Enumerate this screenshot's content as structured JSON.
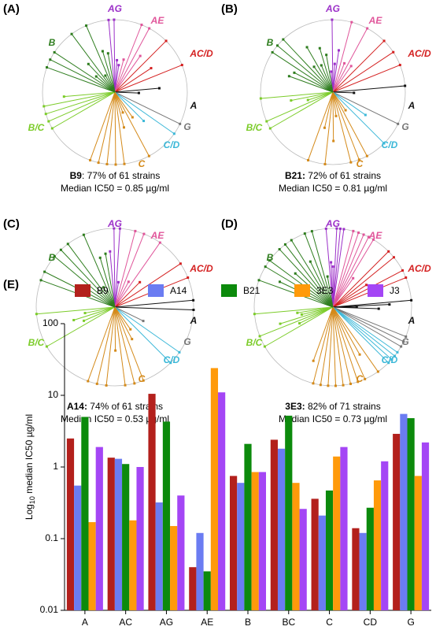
{
  "panels": [
    {
      "label": "(A)",
      "antibody": "B9",
      "caption": ": 77% of 61 strains",
      "median": "Median IC50 = 0.85 µg/ml",
      "clades": [
        "AG",
        "AE",
        "AC/D",
        "A",
        "G",
        "C/D",
        "C",
        "B/C",
        "B"
      ]
    },
    {
      "label": "(B)",
      "antibody": "B21:",
      "caption": " 72% of 61 strains",
      "median": "Median IC50 = 0.81 µg/ml",
      "clades": [
        "AG",
        "AE",
        "AC/D",
        "A",
        "G",
        "C/D",
        "C",
        "B/C",
        "B"
      ]
    },
    {
      "label": "(C)",
      "antibody": "A14:",
      "caption": " 74% of 61 strains",
      "median": "Median IC50 = 0.53 µg/ml",
      "clades": [
        "AG",
        "AE",
        "AC/D",
        "A",
        "G",
        "C/D",
        "C",
        "B/C",
        "B"
      ]
    },
    {
      "label": "(D)",
      "antibody": "3E3:",
      "caption": " 82% of 71 strains",
      "median": "Median IC50 = 0.73 µg/ml",
      "clades": [
        "AG",
        "AE",
        "AC/D",
        "A",
        "G",
        "C/D",
        "C",
        "B/C",
        "B"
      ]
    }
  ],
  "chart_data": {
    "type": "bar",
    "panel_label": "(E)",
    "y_label": {
      "base": "Log",
      "subscript": "10",
      "rest": " median IC50 µg/ml"
    },
    "categories": [
      "A",
      "AC",
      "AG",
      "AE",
      "B",
      "BC",
      "C",
      "CD",
      "G"
    ],
    "series": [
      {
        "name": "B9",
        "color": "#b3201c",
        "values": [
          2.5,
          1.35,
          10.5,
          0.04,
          0.75,
          2.4,
          0.36,
          0.14,
          2.9
        ]
      },
      {
        "name": "A14",
        "color": "#6b7cf2",
        "values": [
          0.55,
          1.3,
          0.32,
          0.12,
          0.6,
          1.8,
          0.21,
          0.12,
          5.5
        ]
      },
      {
        "name": "B21",
        "color": "#0c8a0c",
        "values": [
          5,
          1.1,
          4.3,
          0.035,
          2.1,
          5.2,
          0.47,
          0.27,
          4.8
        ]
      },
      {
        "name": "3E3",
        "color": "#ff9a0a",
        "values": [
          0.17,
          0.18,
          0.15,
          24,
          0.85,
          0.6,
          1.4,
          0.65,
          0.75
        ]
      },
      {
        "name": "J3",
        "color": "#a446f5",
        "values": [
          1.9,
          1.0,
          0.4,
          11,
          0.85,
          0.26,
          1.9,
          1.2,
          2.2
        ]
      }
    ],
    "log_scale": true,
    "ylim": [
      0.01,
      100
    ],
    "yticks": [
      0.01,
      0.1,
      1,
      10,
      100
    ]
  }
}
